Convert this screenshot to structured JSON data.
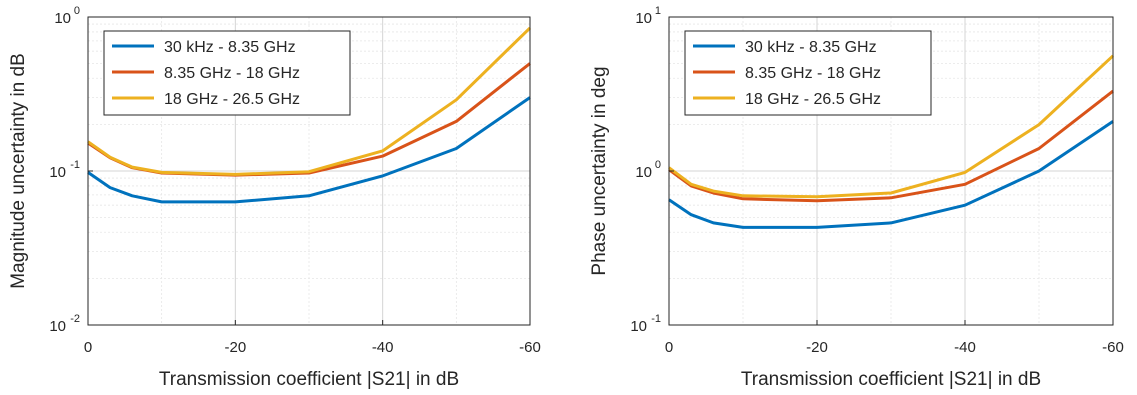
{
  "chart_data": [
    {
      "type": "line",
      "xlabel": "Transmission coefficient |S21| in dB",
      "ylabel": "Magnitude uncertainty in dB",
      "xlim": [
        0,
        -60
      ],
      "x_direction": "reversed",
      "ylim": [
        0.01,
        1
      ],
      "yscale": "log",
      "grid": true,
      "legend_position": "top-left",
      "xticks": [
        "0",
        "-20",
        "-40",
        "-60"
      ],
      "yticks": [
        {
          "base": "10",
          "exp": "-2"
        },
        {
          "base": "10",
          "exp": "-1"
        },
        {
          "base": "10",
          "exp": "0"
        }
      ],
      "x": [
        0,
        -3,
        -6,
        -10,
        -20,
        -30,
        -40,
        -50,
        -60
      ],
      "series": [
        {
          "name": "30 kHz - 8.35 GHz",
          "color": "#0072BD",
          "values": [
            0.098,
            0.078,
            0.069,
            0.063,
            0.063,
            0.069,
            0.093,
            0.14,
            0.3
          ]
        },
        {
          "name": "8.35 GHz - 18 GHz",
          "color": "#D95319",
          "values": [
            0.152,
            0.122,
            0.105,
            0.097,
            0.094,
            0.097,
            0.125,
            0.21,
            0.5
          ]
        },
        {
          "name": "18 GHz - 26.5 GHz",
          "color": "#EDB120",
          "values": [
            0.155,
            0.123,
            0.106,
            0.098,
            0.095,
            0.099,
            0.135,
            0.29,
            0.85
          ]
        }
      ]
    },
    {
      "type": "line",
      "xlabel": "Transmission coefficient |S21| in dB",
      "ylabel": "Phase uncertainty in deg",
      "xlim": [
        0,
        -60
      ],
      "x_direction": "reversed",
      "ylim": [
        0.1,
        10
      ],
      "yscale": "log",
      "grid": true,
      "legend_position": "top-left",
      "xticks": [
        "0",
        "-20",
        "-40",
        "-60"
      ],
      "yticks": [
        {
          "base": "10",
          "exp": "-1"
        },
        {
          "base": "10",
          "exp": "0"
        },
        {
          "base": "10",
          "exp": "1"
        }
      ],
      "x": [
        0,
        -3,
        -6,
        -10,
        -20,
        -30,
        -40,
        -50,
        -60
      ],
      "series": [
        {
          "name": "30 kHz - 8.35 GHz",
          "color": "#0072BD",
          "values": [
            0.65,
            0.52,
            0.46,
            0.43,
            0.43,
            0.46,
            0.6,
            1.0,
            2.1
          ]
        },
        {
          "name": "8.35 GHz - 18 GHz",
          "color": "#D95319",
          "values": [
            1.02,
            0.8,
            0.72,
            0.66,
            0.64,
            0.67,
            0.82,
            1.4,
            3.3
          ]
        },
        {
          "name": "18 GHz - 26.5 GHz",
          "color": "#EDB120",
          "values": [
            1.05,
            0.82,
            0.74,
            0.69,
            0.68,
            0.72,
            0.98,
            2.0,
            5.6
          ]
        }
      ]
    }
  ]
}
